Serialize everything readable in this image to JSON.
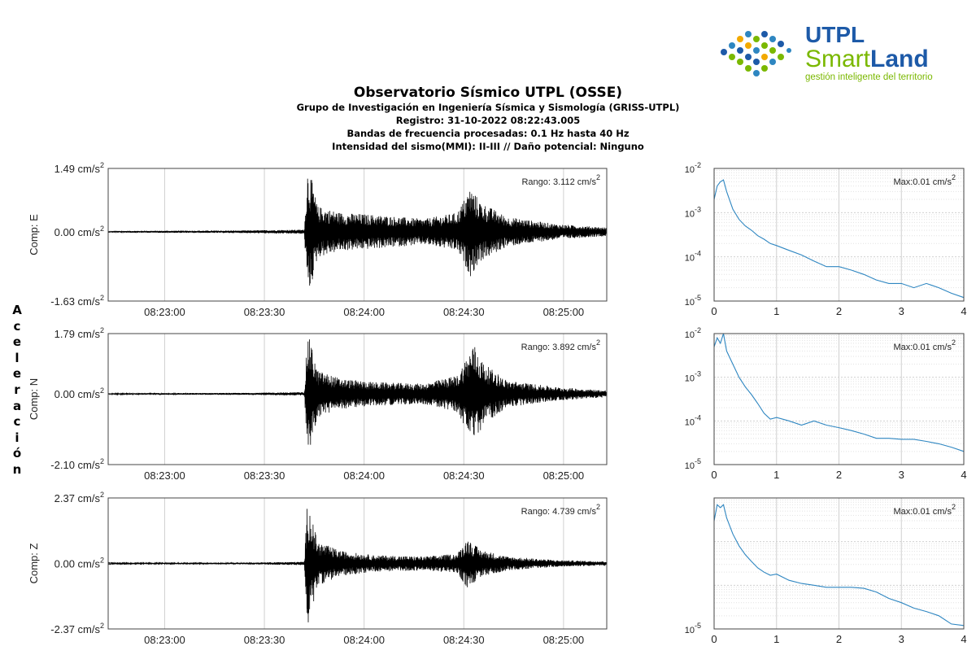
{
  "logo": {
    "line1": "UTPL",
    "line2a": "Smart",
    "line2b": "Land",
    "tagline": "gestión inteligente del territorio"
  },
  "header": {
    "title": "Observatorio Sísmico UTPL (OSSE)",
    "line1": "Grupo de Investigación en Ingeniería Sísmica y Sismología (GRISS-UTPL)",
    "line2": "Registro: 31-10-2022 08:22:43.005",
    "line3": "Bandas de frecuencia procesadas: 0.1 Hz hasta 40 Hz",
    "line4": "Intensidad del sismo(MMI): II-III // Daño potencial: Ninguno"
  },
  "y_axis_label": [
    "A",
    "c",
    "e",
    "l",
    "e",
    "r",
    "a",
    "c",
    "i",
    "ó",
    "n"
  ],
  "colors": {
    "waveform": "#000000",
    "spectrum": "#2e86c1",
    "grid": "#d0d0d0",
    "logo_blue": "#1d5aa8",
    "logo_green": "#7ab800"
  },
  "chart_data": [
    {
      "type": "line",
      "ylabel": "Comp: E",
      "range_label": "Rango: 3.112 cm/s",
      "ytick_labels": [
        "1.49 cm/s",
        "0.00 cm/s",
        "-1.63 cm/s"
      ],
      "yticks": [
        1.49,
        0.0,
        -1.63
      ],
      "ylim": [
        -1.63,
        1.49
      ],
      "xtick_labels": [
        "08:23:00",
        "08:23:30",
        "08:24:00",
        "08:24:30",
        "08:25:00"
      ],
      "xlim_seconds": [
        0,
        150
      ],
      "xtick_seconds": [
        17,
        47,
        77,
        107,
        137
      ],
      "envelope": [
        [
          0,
          0.02
        ],
        [
          40,
          0.03
        ],
        [
          59,
          0.05
        ],
        [
          60,
          1.49
        ],
        [
          61,
          1.3
        ],
        [
          63,
          0.6
        ],
        [
          70,
          0.45
        ],
        [
          80,
          0.4
        ],
        [
          95,
          0.3
        ],
        [
          105,
          0.45
        ],
        [
          109,
          1.05
        ],
        [
          112,
          0.7
        ],
        [
          120,
          0.35
        ],
        [
          135,
          0.18
        ],
        [
          150,
          0.1
        ]
      ]
    },
    {
      "type": "line",
      "ylabel": "Comp: N",
      "range_label": "Rango: 3.892 cm/s",
      "ytick_labels": [
        "1.79 cm/s",
        "0.00 cm/s",
        "-2.10 cm/s"
      ],
      "yticks": [
        1.79,
        0.0,
        -2.1
      ],
      "ylim": [
        -2.1,
        1.79
      ],
      "xtick_labels": [
        "08:23:00",
        "08:23:30",
        "08:24:00",
        "08:24:30",
        "08:25:00"
      ],
      "xlim_seconds": [
        0,
        150
      ],
      "xtick_seconds": [
        17,
        47,
        77,
        107,
        137
      ],
      "envelope": [
        [
          0,
          0.02
        ],
        [
          40,
          0.03
        ],
        [
          59,
          0.05
        ],
        [
          60,
          1.79
        ],
        [
          61,
          1.5
        ],
        [
          63,
          0.7
        ],
        [
          70,
          0.45
        ],
        [
          80,
          0.35
        ],
        [
          95,
          0.3
        ],
        [
          105,
          0.55
        ],
        [
          110,
          1.5
        ],
        [
          113,
          0.9
        ],
        [
          120,
          0.4
        ],
        [
          135,
          0.2
        ],
        [
          150,
          0.1
        ]
      ]
    },
    {
      "type": "line",
      "ylabel": "Comp: Z",
      "range_label": "Rango: 4.739 cm/s",
      "ytick_labels": [
        "2.37 cm/s",
        "0.00 cm/s",
        "-2.37 cm/s"
      ],
      "yticks": [
        2.37,
        0.0,
        -2.37
      ],
      "ylim": [
        -2.37,
        2.37
      ],
      "xtick_labels": [
        "08:23:00",
        "08:23:30",
        "08:24:00",
        "08:24:30",
        "08:25:00"
      ],
      "xlim_seconds": [
        0,
        150
      ],
      "xtick_seconds": [
        17,
        47,
        77,
        107,
        137
      ],
      "envelope": [
        [
          0,
          0.02
        ],
        [
          40,
          0.03
        ],
        [
          59,
          0.06
        ],
        [
          60,
          2.37
        ],
        [
          61,
          1.8
        ],
        [
          63,
          0.8
        ],
        [
          70,
          0.45
        ],
        [
          80,
          0.3
        ],
        [
          95,
          0.25
        ],
        [
          105,
          0.35
        ],
        [
          108,
          0.9
        ],
        [
          112,
          0.5
        ],
        [
          120,
          0.25
        ],
        [
          135,
          0.12
        ],
        [
          150,
          0.08
        ]
      ]
    },
    {
      "type": "line",
      "log_y": true,
      "max_label": "Max:0.01 cm/s",
      "ytick_labels": [
        "10",
        "10",
        "10",
        "10"
      ],
      "ytick_exponents": [
        "-2",
        "-3",
        "-4",
        "-5"
      ],
      "ylim": [
        1e-05,
        0.01
      ],
      "xlim": [
        0,
        4
      ],
      "xticks": [
        0,
        1,
        2,
        3,
        4
      ],
      "xtick_labels": [
        "0",
        "1",
        "2",
        "3",
        "4"
      ],
      "x": [
        0,
        0.05,
        0.1,
        0.15,
        0.2,
        0.3,
        0.4,
        0.5,
        0.6,
        0.7,
        0.8,
        0.9,
        1.0,
        1.2,
        1.4,
        1.6,
        1.8,
        2.0,
        2.2,
        2.4,
        2.6,
        2.8,
        3.0,
        3.2,
        3.4,
        3.6,
        3.8,
        4.0
      ],
      "y": [
        0.002,
        0.004,
        0.005,
        0.0055,
        0.003,
        0.0012,
        0.0007,
        0.0005,
        0.0004,
        0.0003,
        0.00025,
        0.0002,
        0.00018,
        0.00014,
        0.00011,
        8e-05,
        6e-05,
        6e-05,
        5e-05,
        4e-05,
        3e-05,
        2.5e-05,
        2.5e-05,
        2e-05,
        2.5e-05,
        2e-05,
        1.5e-05,
        1.2e-05
      ]
    },
    {
      "type": "line",
      "log_y": true,
      "max_label": "Max:0.01 cm/s",
      "ytick_labels": [
        "10",
        "10",
        "10",
        "10"
      ],
      "ytick_exponents": [
        "-2",
        "-3",
        "-4",
        "-5"
      ],
      "ylim": [
        1e-05,
        0.01
      ],
      "xlim": [
        0,
        4
      ],
      "xticks": [
        0,
        1,
        2,
        3,
        4
      ],
      "xtick_labels": [
        "0",
        "1",
        "2",
        "3",
        "4"
      ],
      "x": [
        0,
        0.05,
        0.1,
        0.15,
        0.2,
        0.3,
        0.4,
        0.5,
        0.6,
        0.7,
        0.8,
        0.9,
        1.0,
        1.2,
        1.4,
        1.6,
        1.8,
        2.0,
        2.2,
        2.4,
        2.6,
        2.8,
        3.0,
        3.2,
        3.4,
        3.6,
        3.8,
        4.0
      ],
      "y": [
        0.005,
        0.008,
        0.006,
        0.01,
        0.004,
        0.002,
        0.001,
        0.0006,
        0.0004,
        0.00025,
        0.00015,
        0.00011,
        0.00012,
        0.0001,
        8e-05,
        0.0001,
        8e-05,
        7e-05,
        6e-05,
        5e-05,
        4e-05,
        4e-05,
        3.8e-05,
        3.8e-05,
        3.4e-05,
        3e-05,
        2.5e-05,
        2e-05
      ]
    },
    {
      "type": "line",
      "log_y": true,
      "max_label": "Max:0.01 cm/s",
      "ytick_labels": [
        "10"
      ],
      "ytick_exponents": [
        "-5"
      ],
      "ylim": [
        1e-05,
        0.01
      ],
      "xlim": [
        0,
        4
      ],
      "xticks": [
        0,
        1,
        2,
        3,
        4
      ],
      "xtick_labels": [
        "0",
        "1",
        "2",
        "3",
        "4"
      ],
      "x": [
        0,
        0.05,
        0.1,
        0.15,
        0.2,
        0.3,
        0.4,
        0.5,
        0.6,
        0.7,
        0.8,
        0.9,
        1.0,
        1.2,
        1.4,
        1.6,
        1.8,
        2.0,
        2.2,
        2.4,
        2.6,
        2.8,
        3.0,
        3.2,
        3.4,
        3.6,
        3.8,
        4.0
      ],
      "y": [
        0.003,
        0.007,
        0.006,
        0.007,
        0.0035,
        0.0015,
        0.0008,
        0.0005,
        0.00035,
        0.00025,
        0.0002,
        0.00017,
        0.00018,
        0.00013,
        0.00011,
        0.0001,
        9e-05,
        9e-05,
        9e-05,
        8.5e-05,
        7e-05,
        5e-05,
        4e-05,
        3e-05,
        2.5e-05,
        2e-05,
        1.3e-05,
        1.2e-05
      ]
    }
  ]
}
